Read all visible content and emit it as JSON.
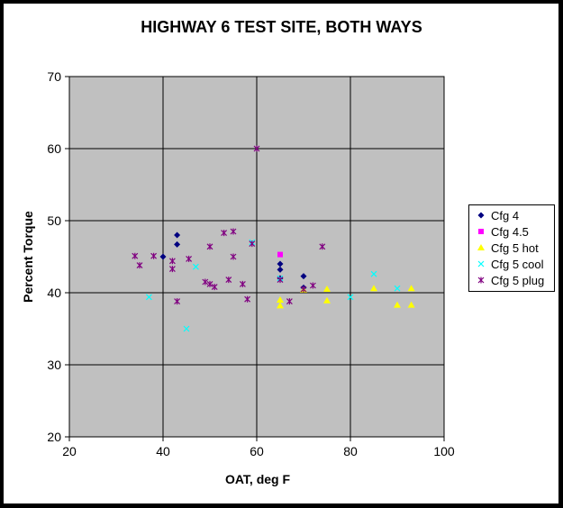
{
  "chart_data": {
    "type": "scatter",
    "title": "HIGHWAY 6 TEST SITE, BOTH WAYS",
    "xlabel": "OAT, deg F",
    "ylabel": "Percent Torque",
    "xlim": [
      20,
      100
    ],
    "ylim": [
      20,
      70
    ],
    "xticks": [
      20,
      40,
      60,
      80,
      100
    ],
    "yticks": [
      20,
      30,
      40,
      50,
      60,
      70
    ],
    "grid": true,
    "plot_background": "#C0C0C0",
    "legend_position": "right",
    "series": [
      {
        "name": "Cfg 4",
        "marker": "diamond",
        "color": "#000080",
        "points": [
          [
            40,
            45
          ],
          [
            43,
            48
          ],
          [
            43,
            46.7
          ],
          [
            65,
            44
          ],
          [
            65,
            43.2
          ],
          [
            65,
            42
          ],
          [
            70,
            42.3
          ],
          [
            70,
            40.7
          ]
        ]
      },
      {
        "name": "Cfg 4.5",
        "marker": "square",
        "color": "#FF00FF",
        "points": [
          [
            65,
            45.3
          ]
        ]
      },
      {
        "name": "Cfg 5 hot",
        "marker": "triangle",
        "color": "#FFFF00",
        "points": [
          [
            65,
            39
          ],
          [
            65,
            38.2
          ],
          [
            70,
            40.4
          ],
          [
            75,
            40.5
          ],
          [
            75,
            38.9
          ],
          [
            85,
            40.6
          ],
          [
            90,
            38.3
          ],
          [
            93,
            40.6
          ],
          [
            93,
            38.3
          ]
        ]
      },
      {
        "name": "Cfg 5 cool",
        "marker": "x",
        "color": "#00FFFF",
        "points": [
          [
            37,
            39.4
          ],
          [
            45,
            35
          ],
          [
            47,
            43.6
          ],
          [
            59,
            47
          ],
          [
            65,
            42
          ],
          [
            80,
            39.4
          ],
          [
            85,
            42.6
          ],
          [
            90,
            40.6
          ]
        ]
      },
      {
        "name": "Cfg 5 plug",
        "marker": "star",
        "color": "#800080",
        "points": [
          [
            34,
            45.1
          ],
          [
            35,
            43.8
          ],
          [
            38,
            45.1
          ],
          [
            42,
            44.4
          ],
          [
            42,
            43.3
          ],
          [
            43,
            38.8
          ],
          [
            45.5,
            44.7
          ],
          [
            49,
            41.5
          ],
          [
            50,
            46.4
          ],
          [
            50,
            41.2
          ],
          [
            51,
            40.8
          ],
          [
            53,
            48.3
          ],
          [
            54,
            41.8
          ],
          [
            55,
            48.5
          ],
          [
            55,
            45
          ],
          [
            57,
            41.2
          ],
          [
            58,
            39.1
          ],
          [
            59,
            46.8
          ],
          [
            60,
            60
          ],
          [
            65,
            41.8
          ],
          [
            67,
            38.8
          ],
          [
            70,
            40.5
          ],
          [
            72,
            41
          ],
          [
            74,
            46.4
          ]
        ]
      }
    ]
  }
}
